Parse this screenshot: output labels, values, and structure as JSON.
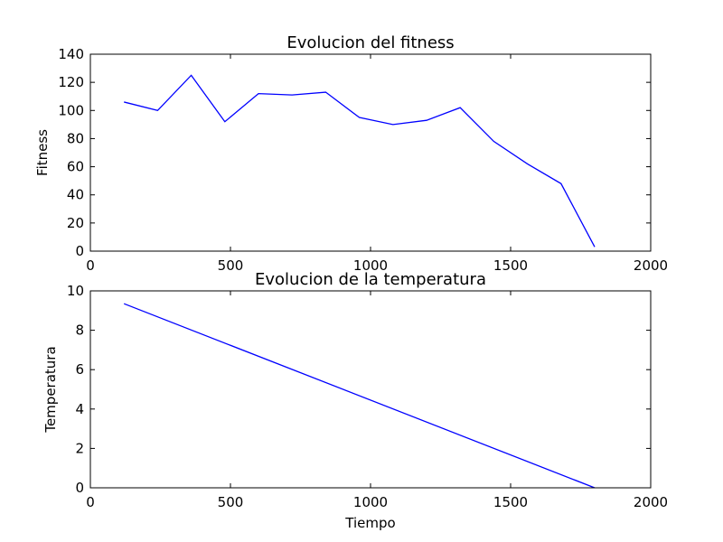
{
  "chart_data": [
    {
      "type": "line",
      "title": "Evolucion del fitness",
      "xlabel": "",
      "ylabel": "Fitness",
      "xlim": [
        0,
        2000
      ],
      "ylim": [
        0,
        140
      ],
      "x_ticks": [
        "0",
        "500",
        "1000",
        "1500",
        "2000"
      ],
      "y_ticks": [
        "0",
        "20",
        "40",
        "60",
        "80",
        "100",
        "120",
        "140"
      ],
      "grid": false,
      "line_color": "#0000ff",
      "series": [
        {
          "x": [
            120,
            240,
            360,
            480,
            600,
            720,
            840,
            960,
            1080,
            1200,
            1320,
            1440,
            1560,
            1680,
            1800
          ],
          "y": [
            106,
            100,
            125,
            92,
            112,
            111,
            113,
            95,
            90,
            93,
            102,
            78,
            62,
            48,
            3
          ]
        }
      ]
    },
    {
      "type": "line",
      "title": "Evolucion de la temperatura",
      "xlabel": "Tiempo",
      "ylabel": "Temperatura",
      "xlim": [
        0,
        2000
      ],
      "ylim": [
        0,
        10
      ],
      "x_ticks": [
        "0",
        "500",
        "1000",
        "1500",
        "2000"
      ],
      "y_ticks": [
        "0",
        "2",
        "4",
        "6",
        "8",
        "10"
      ],
      "grid": false,
      "line_color": "#0000ff",
      "series": [
        {
          "x": [
            120,
            1800
          ],
          "y": [
            9.35,
            0
          ]
        }
      ]
    }
  ]
}
